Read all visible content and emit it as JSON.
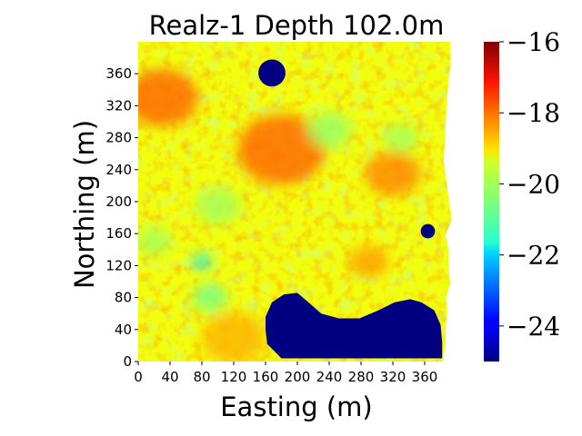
{
  "chart_data": {
    "type": "heatmap",
    "title": "Realz-1 Depth 102.0m",
    "xlabel": "Easting (m)",
    "ylabel": "Northing (m)",
    "xlim": [
      0,
      400
    ],
    "ylim": [
      0,
      400
    ],
    "xticks": [
      0,
      40,
      80,
      120,
      160,
      200,
      240,
      280,
      320,
      360
    ],
    "yticks": [
      0,
      40,
      80,
      120,
      160,
      200,
      240,
      280,
      320,
      360
    ],
    "colormap": "jet",
    "colorbar": {
      "min": -25,
      "max": -16,
      "ticks": [
        -16,
        -18,
        -20,
        -22,
        -24
      ]
    },
    "background_value": -19.5,
    "anomalies": [
      {
        "kind": "warm-patch",
        "center": [
          30,
          330
        ],
        "radius": 45,
        "value": -18.0
      },
      {
        "kind": "warm-patch",
        "center": [
          180,
          265
        ],
        "radius": 55,
        "value": -18.0
      },
      {
        "kind": "warm-patch",
        "center": [
          320,
          235
        ],
        "radius": 35,
        "value": -18.3
      },
      {
        "kind": "warm-patch",
        "center": [
          290,
          125
        ],
        "radius": 25,
        "value": -18.5
      },
      {
        "kind": "warm-patch",
        "center": [
          120,
          30
        ],
        "radius": 40,
        "value": -18.7
      },
      {
        "kind": "cool-patch",
        "center": [
          80,
          125
        ],
        "radius": 12,
        "value": -21.8
      },
      {
        "kind": "cool-patch",
        "center": [
          90,
          80
        ],
        "radius": 22,
        "value": -20.6
      },
      {
        "kind": "cool-patch",
        "center": [
          240,
          290
        ],
        "radius": 28,
        "value": -20.3
      },
      {
        "kind": "cool-patch",
        "center": [
          100,
          195
        ],
        "radius": 28,
        "value": -20.2
      },
      {
        "kind": "cool-patch",
        "center": [
          330,
          280
        ],
        "radius": 22,
        "value": -20.2
      },
      {
        "kind": "cool-patch",
        "center": [
          20,
          150
        ],
        "radius": 22,
        "value": -20.2
      }
    ],
    "low_regions": [
      {
        "kind": "circle",
        "center": [
          168,
          361
        ],
        "radius": 17,
        "value": -25
      },
      {
        "kind": "circle",
        "center": [
          364,
          163
        ],
        "radius": 9,
        "value": -25
      },
      {
        "kind": "blob",
        "value": -25,
        "outline": [
          [
            160,
            56
          ],
          [
            168,
            74
          ],
          [
            183,
            84
          ],
          [
            200,
            86
          ],
          [
            214,
            74
          ],
          [
            230,
            60
          ],
          [
            252,
            54
          ],
          [
            278,
            54
          ],
          [
            302,
            64
          ],
          [
            322,
            74
          ],
          [
            342,
            78
          ],
          [
            356,
            74
          ],
          [
            372,
            64
          ],
          [
            380,
            46
          ],
          [
            382,
            24
          ],
          [
            382,
            4
          ],
          [
            180,
            4
          ],
          [
            162,
            22
          ],
          [
            160,
            40
          ]
        ]
      }
    ],
    "mask_edge": [
      [
        392,
        400
      ],
      [
        392,
        368
      ],
      [
        388,
        330
      ],
      [
        386,
        290
      ],
      [
        384,
        250
      ],
      [
        390,
        205
      ],
      [
        394,
        178
      ],
      [
        386,
        158
      ],
      [
        390,
        140
      ],
      [
        390,
        120
      ],
      [
        392,
        98
      ],
      [
        387,
        80
      ],
      [
        388,
        60
      ],
      [
        386,
        40
      ],
      [
        386,
        20
      ],
      [
        382,
        0
      ]
    ]
  }
}
